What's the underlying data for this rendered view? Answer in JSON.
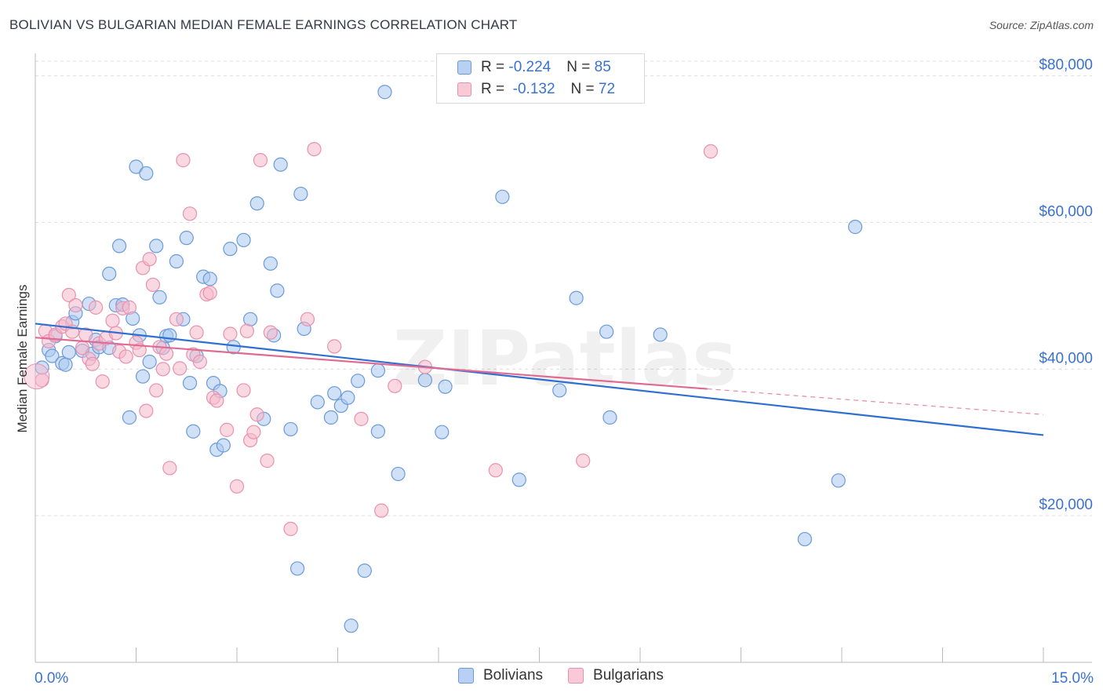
{
  "header": {
    "title": "BOLIVIAN VS BULGARIAN MEDIAN FEMALE EARNINGS CORRELATION CHART",
    "source": "Source: ZipAtlas.com"
  },
  "legend": {
    "rows": [
      {
        "r_label": "R = ",
        "r_value": "-0.224",
        "n_label": "N = ",
        "n_value": "85"
      },
      {
        "r_label": "R = ",
        "r_value": " -0.132",
        "n_label": "N = ",
        "n_value": "72"
      }
    ]
  },
  "bottom_legend": {
    "bolivians": "Bolivians",
    "bulgarians": "Bulgarians"
  },
  "colors": {
    "bolivians_fill": "#a9c8f0",
    "bolivians_stroke": "#6a9ad8",
    "bolivians_line": "#2f6fd0",
    "bulgarians_fill": "#f6b8cb",
    "bulgarians_stroke": "#e891ae",
    "bulgarians_line": "#e06a92",
    "axis_label": "#3a72d0",
    "grid": "#dedede"
  },
  "chart_data": {
    "type": "scatter",
    "title": "BOLIVIAN VS BULGARIAN MEDIAN FEMALE EARNINGS CORRELATION CHART",
    "xlabel": "",
    "ylabel": "Median Female Earnings",
    "xlim": [
      0,
      15
    ],
    "ylim": [
      0,
      82000
    ],
    "x_tick_labels": [
      "0.0%",
      "15.0%"
    ],
    "y_ticks": [
      20000,
      40000,
      60000,
      80000
    ],
    "y_tick_labels": [
      "$20,000",
      "$40,000",
      "$60,000",
      "$80,000"
    ],
    "watermark": "ZIPatlas",
    "series": [
      {
        "name": "Bolivians",
        "R": -0.224,
        "N": 85,
        "trend": {
          "x": [
            0,
            15
          ],
          "y": [
            46200,
            31000
          ]
        },
        "points": [
          [
            0.1,
            40200
          ],
          [
            0.2,
            42600
          ],
          [
            0.25,
            41800
          ],
          [
            0.3,
            44500
          ],
          [
            0.4,
            40800
          ],
          [
            0.45,
            40600
          ],
          [
            0.5,
            42300
          ],
          [
            0.55,
            46400
          ],
          [
            0.6,
            47600
          ],
          [
            0.7,
            42500
          ],
          [
            0.8,
            48900
          ],
          [
            0.85,
            42100
          ],
          [
            0.9,
            44000
          ],
          [
            0.95,
            43000
          ],
          [
            1.1,
            42900
          ],
          [
            1.1,
            53000
          ],
          [
            1.2,
            48700
          ],
          [
            1.25,
            56800
          ],
          [
            1.3,
            48800
          ],
          [
            1.4,
            33400
          ],
          [
            1.45,
            46900
          ],
          [
            1.5,
            67600
          ],
          [
            1.55,
            44600
          ],
          [
            1.6,
            39000
          ],
          [
            1.65,
            66700
          ],
          [
            1.7,
            41000
          ],
          [
            1.8,
            56800
          ],
          [
            1.85,
            49800
          ],
          [
            1.9,
            42900
          ],
          [
            1.95,
            44500
          ],
          [
            2.0,
            44600
          ],
          [
            2.1,
            54700
          ],
          [
            2.2,
            46800
          ],
          [
            2.25,
            57900
          ],
          [
            2.3,
            38100
          ],
          [
            2.35,
            31500
          ],
          [
            2.4,
            41800
          ],
          [
            2.5,
            52600
          ],
          [
            2.6,
            52300
          ],
          [
            2.65,
            38100
          ],
          [
            2.7,
            29000
          ],
          [
            2.75,
            37000
          ],
          [
            2.8,
            29600
          ],
          [
            2.9,
            56400
          ],
          [
            2.95,
            43000
          ],
          [
            3.1,
            57600
          ],
          [
            3.2,
            46800
          ],
          [
            3.3,
            62600
          ],
          [
            3.4,
            33200
          ],
          [
            3.5,
            54400
          ],
          [
            3.55,
            44600
          ],
          [
            3.6,
            50700
          ],
          [
            3.65,
            67900
          ],
          [
            3.8,
            31800
          ],
          [
            3.9,
            12800
          ],
          [
            3.95,
            63900
          ],
          [
            4.0,
            45500
          ],
          [
            4.2,
            35500
          ],
          [
            4.4,
            33400
          ],
          [
            4.45,
            36700
          ],
          [
            4.55,
            35000
          ],
          [
            4.65,
            36100
          ],
          [
            4.7,
            5000
          ],
          [
            4.8,
            38400
          ],
          [
            4.9,
            12500
          ],
          [
            5.1,
            31500
          ],
          [
            5.1,
            39800
          ],
          [
            5.2,
            77800
          ],
          [
            5.4,
            25700
          ],
          [
            5.8,
            38500
          ],
          [
            6.05,
            31400
          ],
          [
            6.1,
            37600
          ],
          [
            6.95,
            63500
          ],
          [
            7.2,
            24900
          ],
          [
            7.8,
            37100
          ],
          [
            8.05,
            49700
          ],
          [
            8.5,
            45100
          ],
          [
            8.55,
            33400
          ],
          [
            9.3,
            44700
          ],
          [
            11.45,
            16800
          ],
          [
            11.95,
            24800
          ],
          [
            12.2,
            59400
          ]
        ]
      },
      {
        "name": "Bulgarians",
        "R": -0.132,
        "N": 72,
        "trend": {
          "x": [
            0,
            10.0
          ],
          "y": [
            44300,
            37300
          ]
        },
        "trend_dashed": {
          "x": [
            10.0,
            15
          ],
          "y": [
            37300,
            33800
          ]
        },
        "points": [
          [
            0.1,
            38500
          ],
          [
            0.15,
            45200
          ],
          [
            0.2,
            43800
          ],
          [
            0.3,
            44700
          ],
          [
            0.4,
            45800
          ],
          [
            0.45,
            46200
          ],
          [
            0.5,
            50100
          ],
          [
            0.55,
            45100
          ],
          [
            0.6,
            48700
          ],
          [
            0.7,
            42900
          ],
          [
            0.75,
            44700
          ],
          [
            0.8,
            41400
          ],
          [
            0.85,
            40700
          ],
          [
            0.9,
            48400
          ],
          [
            0.95,
            43500
          ],
          [
            1.0,
            38300
          ],
          [
            1.05,
            44200
          ],
          [
            1.15,
            46600
          ],
          [
            1.2,
            44900
          ],
          [
            1.25,
            42400
          ],
          [
            1.3,
            48300
          ],
          [
            1.35,
            41700
          ],
          [
            1.4,
            48400
          ],
          [
            1.5,
            43600
          ],
          [
            1.55,
            42600
          ],
          [
            1.6,
            53800
          ],
          [
            1.65,
            34300
          ],
          [
            1.7,
            55000
          ],
          [
            1.75,
            51500
          ],
          [
            1.8,
            37100
          ],
          [
            1.85,
            43000
          ],
          [
            1.9,
            40000
          ],
          [
            1.95,
            42100
          ],
          [
            2.0,
            26500
          ],
          [
            2.1,
            46800
          ],
          [
            2.15,
            40100
          ],
          [
            2.2,
            68500
          ],
          [
            2.3,
            61200
          ],
          [
            2.35,
            42000
          ],
          [
            2.4,
            45000
          ],
          [
            2.45,
            41000
          ],
          [
            2.55,
            50200
          ],
          [
            2.6,
            50400
          ],
          [
            2.65,
            36100
          ],
          [
            2.7,
            35700
          ],
          [
            2.85,
            31700
          ],
          [
            2.9,
            44800
          ],
          [
            3.0,
            24000
          ],
          [
            3.1,
            37100
          ],
          [
            3.15,
            45200
          ],
          [
            3.2,
            30300
          ],
          [
            3.25,
            31400
          ],
          [
            3.3,
            33800
          ],
          [
            3.35,
            68500
          ],
          [
            3.45,
            27500
          ],
          [
            3.5,
            45000
          ],
          [
            3.8,
            18200
          ],
          [
            4.05,
            46800
          ],
          [
            4.15,
            70000
          ],
          [
            4.45,
            43100
          ],
          [
            4.85,
            33200
          ],
          [
            5.15,
            20700
          ],
          [
            5.35,
            37700
          ],
          [
            5.8,
            40300
          ],
          [
            6.85,
            26200
          ],
          [
            8.15,
            27500
          ],
          [
            10.05,
            69700
          ]
        ]
      }
    ]
  }
}
